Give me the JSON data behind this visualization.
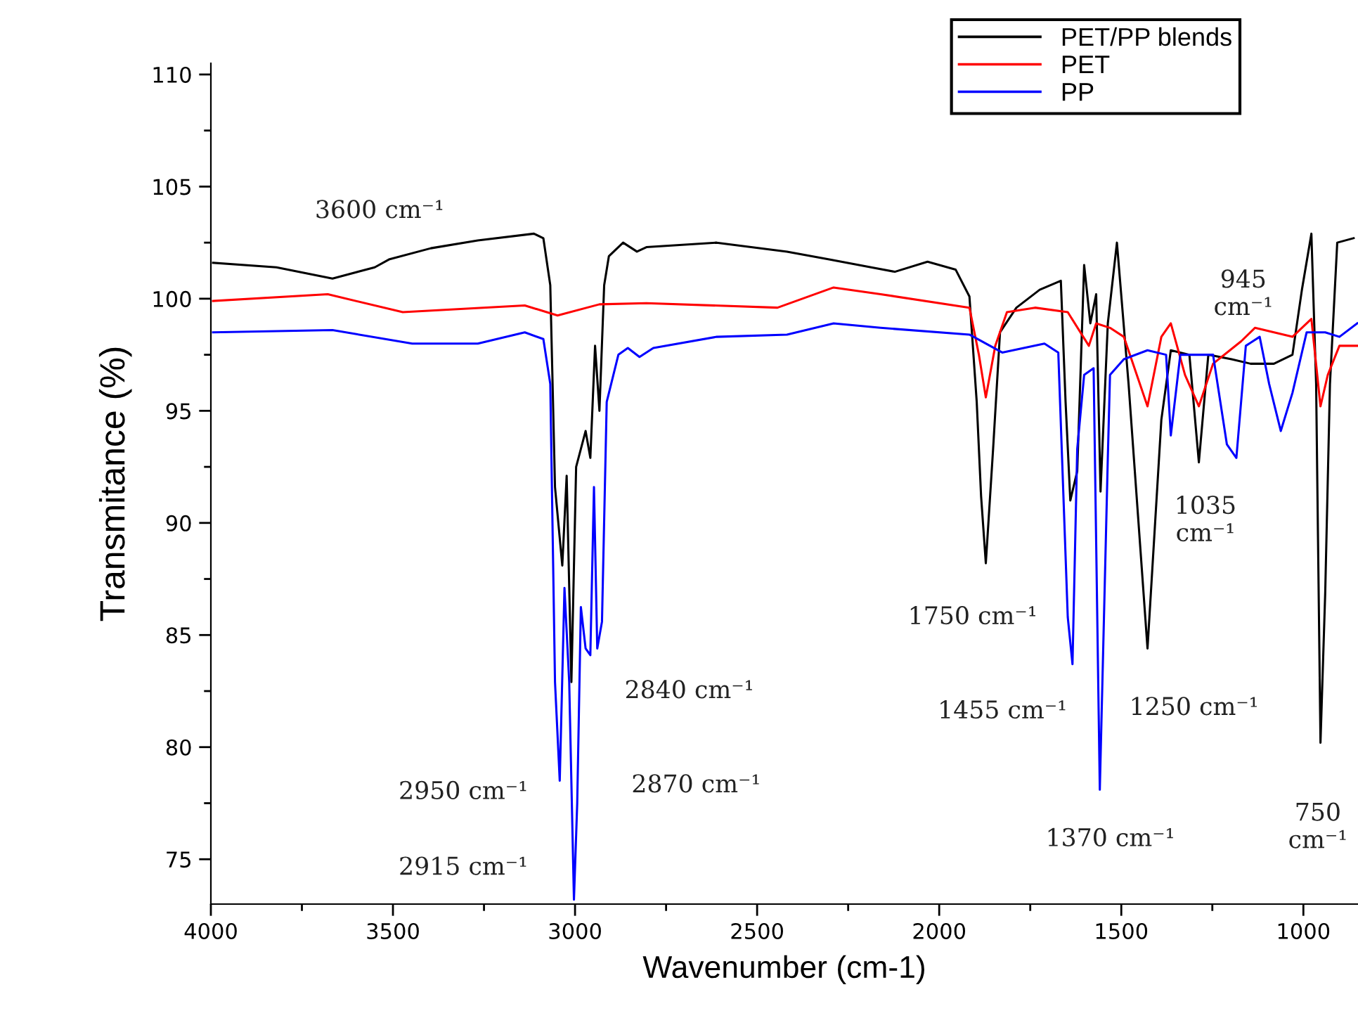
{
  "chart_data": {
    "type": "line",
    "xlabel": "Wavenumber (cm-1)",
    "ylabel": "Transmitance (%)",
    "xlim": [
      4000,
      850
    ],
    "xticks": [
      4000,
      3500,
      3000,
      2500,
      2000,
      1500,
      1000
    ],
    "ylim": [
      73,
      110.5
    ],
    "yticks": [
      75,
      80,
      85,
      90,
      95,
      100,
      105,
      110
    ],
    "legend": "top right",
    "grid": false,
    "marker": "none",
    "line_style": "solid",
    "series": [
      {
        "name": "PET/PP blends",
        "color": "#000000",
        "x": [
          3994,
          3820,
          3666,
          3550,
          3511,
          3396,
          3267,
          3113,
          3087,
          3068,
          3055,
          3035,
          3023,
          3010,
          2997,
          2984,
          2971,
          2958,
          2945,
          2933,
          2920,
          2907,
          2868,
          2830,
          2804,
          2611,
          2418,
          2302,
          2187,
          2122,
          2032,
          1955,
          1917,
          1897,
          1885,
          1872,
          1852,
          1833,
          1788,
          1724,
          1666,
          1653,
          1640,
          1621,
          1602,
          1585,
          1569,
          1557,
          1537,
          1512,
          1480,
          1428,
          1390,
          1364,
          1313,
          1287,
          1261,
          1197,
          1145,
          1081,
          1030,
          1004,
          978,
          965,
          953,
          940,
          927,
          907,
          862
        ],
        "values": [
          101.6,
          101.4,
          100.9,
          101.4,
          101.75,
          102.25,
          102.6,
          102.9,
          102.7,
          100.6,
          91.6,
          88.1,
          92.1,
          82.9,
          92.5,
          93.3,
          94.1,
          92.9,
          97.9,
          95.0,
          100.6,
          101.9,
          102.5,
          102.1,
          102.3,
          102.5,
          102.1,
          101.75,
          101.4,
          101.2,
          101.65,
          101.3,
          100.1,
          95.4,
          91.2,
          88.2,
          93.3,
          98.5,
          99.6,
          100.4,
          100.8,
          95.4,
          91.0,
          92.3,
          101.5,
          98.9,
          100.2,
          91.4,
          98.9,
          102.5,
          96.2,
          84.4,
          94.6,
          97.7,
          97.5,
          92.7,
          97.5,
          97.3,
          97.1,
          97.1,
          97.5,
          100.4,
          102.9,
          96.2,
          80.2,
          86.9,
          96.2,
          102.5,
          102.7
        ]
      },
      {
        "name": "PET",
        "color": "#ff0000",
        "x": [
          3994,
          3679,
          3473,
          3138,
          3048,
          2933,
          2804,
          2444,
          2290,
          2161,
          1917,
          1891,
          1872,
          1846,
          1814,
          1737,
          1647,
          1589,
          1569,
          1531,
          1493,
          1428,
          1390,
          1364,
          1325,
          1287,
          1248,
          1171,
          1133,
          1030,
          978,
          953,
          933,
          901,
          852
        ],
        "values": [
          99.9,
          100.2,
          99.4,
          99.7,
          99.25,
          99.75,
          99.8,
          99.6,
          100.5,
          100.2,
          99.6,
          97.5,
          95.6,
          97.9,
          99.4,
          99.6,
          99.4,
          97.9,
          98.9,
          98.7,
          98.3,
          95.2,
          98.3,
          98.9,
          96.6,
          95.2,
          97.1,
          98.1,
          98.7,
          98.3,
          99.1,
          95.2,
          96.6,
          97.9,
          97.9
        ]
      },
      {
        "name": "PP",
        "color": "#0000ff",
        "x": [
          3994,
          3666,
          3447,
          3267,
          3138,
          3087,
          3068,
          3055,
          3042,
          3029,
          3016,
          3003,
          2994,
          2984,
          2971,
          2958,
          2948,
          2939,
          2926,
          2913,
          2881,
          2855,
          2823,
          2785,
          2611,
          2418,
          2290,
          2161,
          1917,
          1827,
          1711,
          1673,
          1647,
          1634,
          1621,
          1602,
          1576,
          1559,
          1537,
          1531,
          1493,
          1428,
          1377,
          1364,
          1338,
          1248,
          1210,
          1184,
          1158,
          1120,
          1094,
          1062,
          1030,
          991,
          940,
          901,
          852
        ],
        "values": [
          98.5,
          98.6,
          98.0,
          98.0,
          98.5,
          98.2,
          96.2,
          82.9,
          78.5,
          87.1,
          82.9,
          73.2,
          77.5,
          86.25,
          84.4,
          84.1,
          91.6,
          84.4,
          85.6,
          95.4,
          97.5,
          97.8,
          97.4,
          97.8,
          98.3,
          98.4,
          98.9,
          98.7,
          98.4,
          97.6,
          98.0,
          97.6,
          85.8,
          83.7,
          93.3,
          96.6,
          96.9,
          78.1,
          92.9,
          96.6,
          97.3,
          97.7,
          97.5,
          93.9,
          97.5,
          97.5,
          93.5,
          92.9,
          97.9,
          98.3,
          96.2,
          94.1,
          95.8,
          98.5,
          98.5,
          98.3,
          98.9
        ]
      }
    ],
    "annotations": [
      "3600 cm⁻¹",
      "2950 cm⁻¹",
      "2915 cm⁻¹",
      "2840 cm⁻¹",
      "2870 cm⁻¹",
      "1750 cm⁻¹",
      "1455 cm⁻¹",
      "1370 cm⁻¹",
      "1250 cm⁻¹",
      "1035\ncm⁻¹",
      "945\ncm⁻¹",
      "750\ncm⁻¹"
    ]
  }
}
